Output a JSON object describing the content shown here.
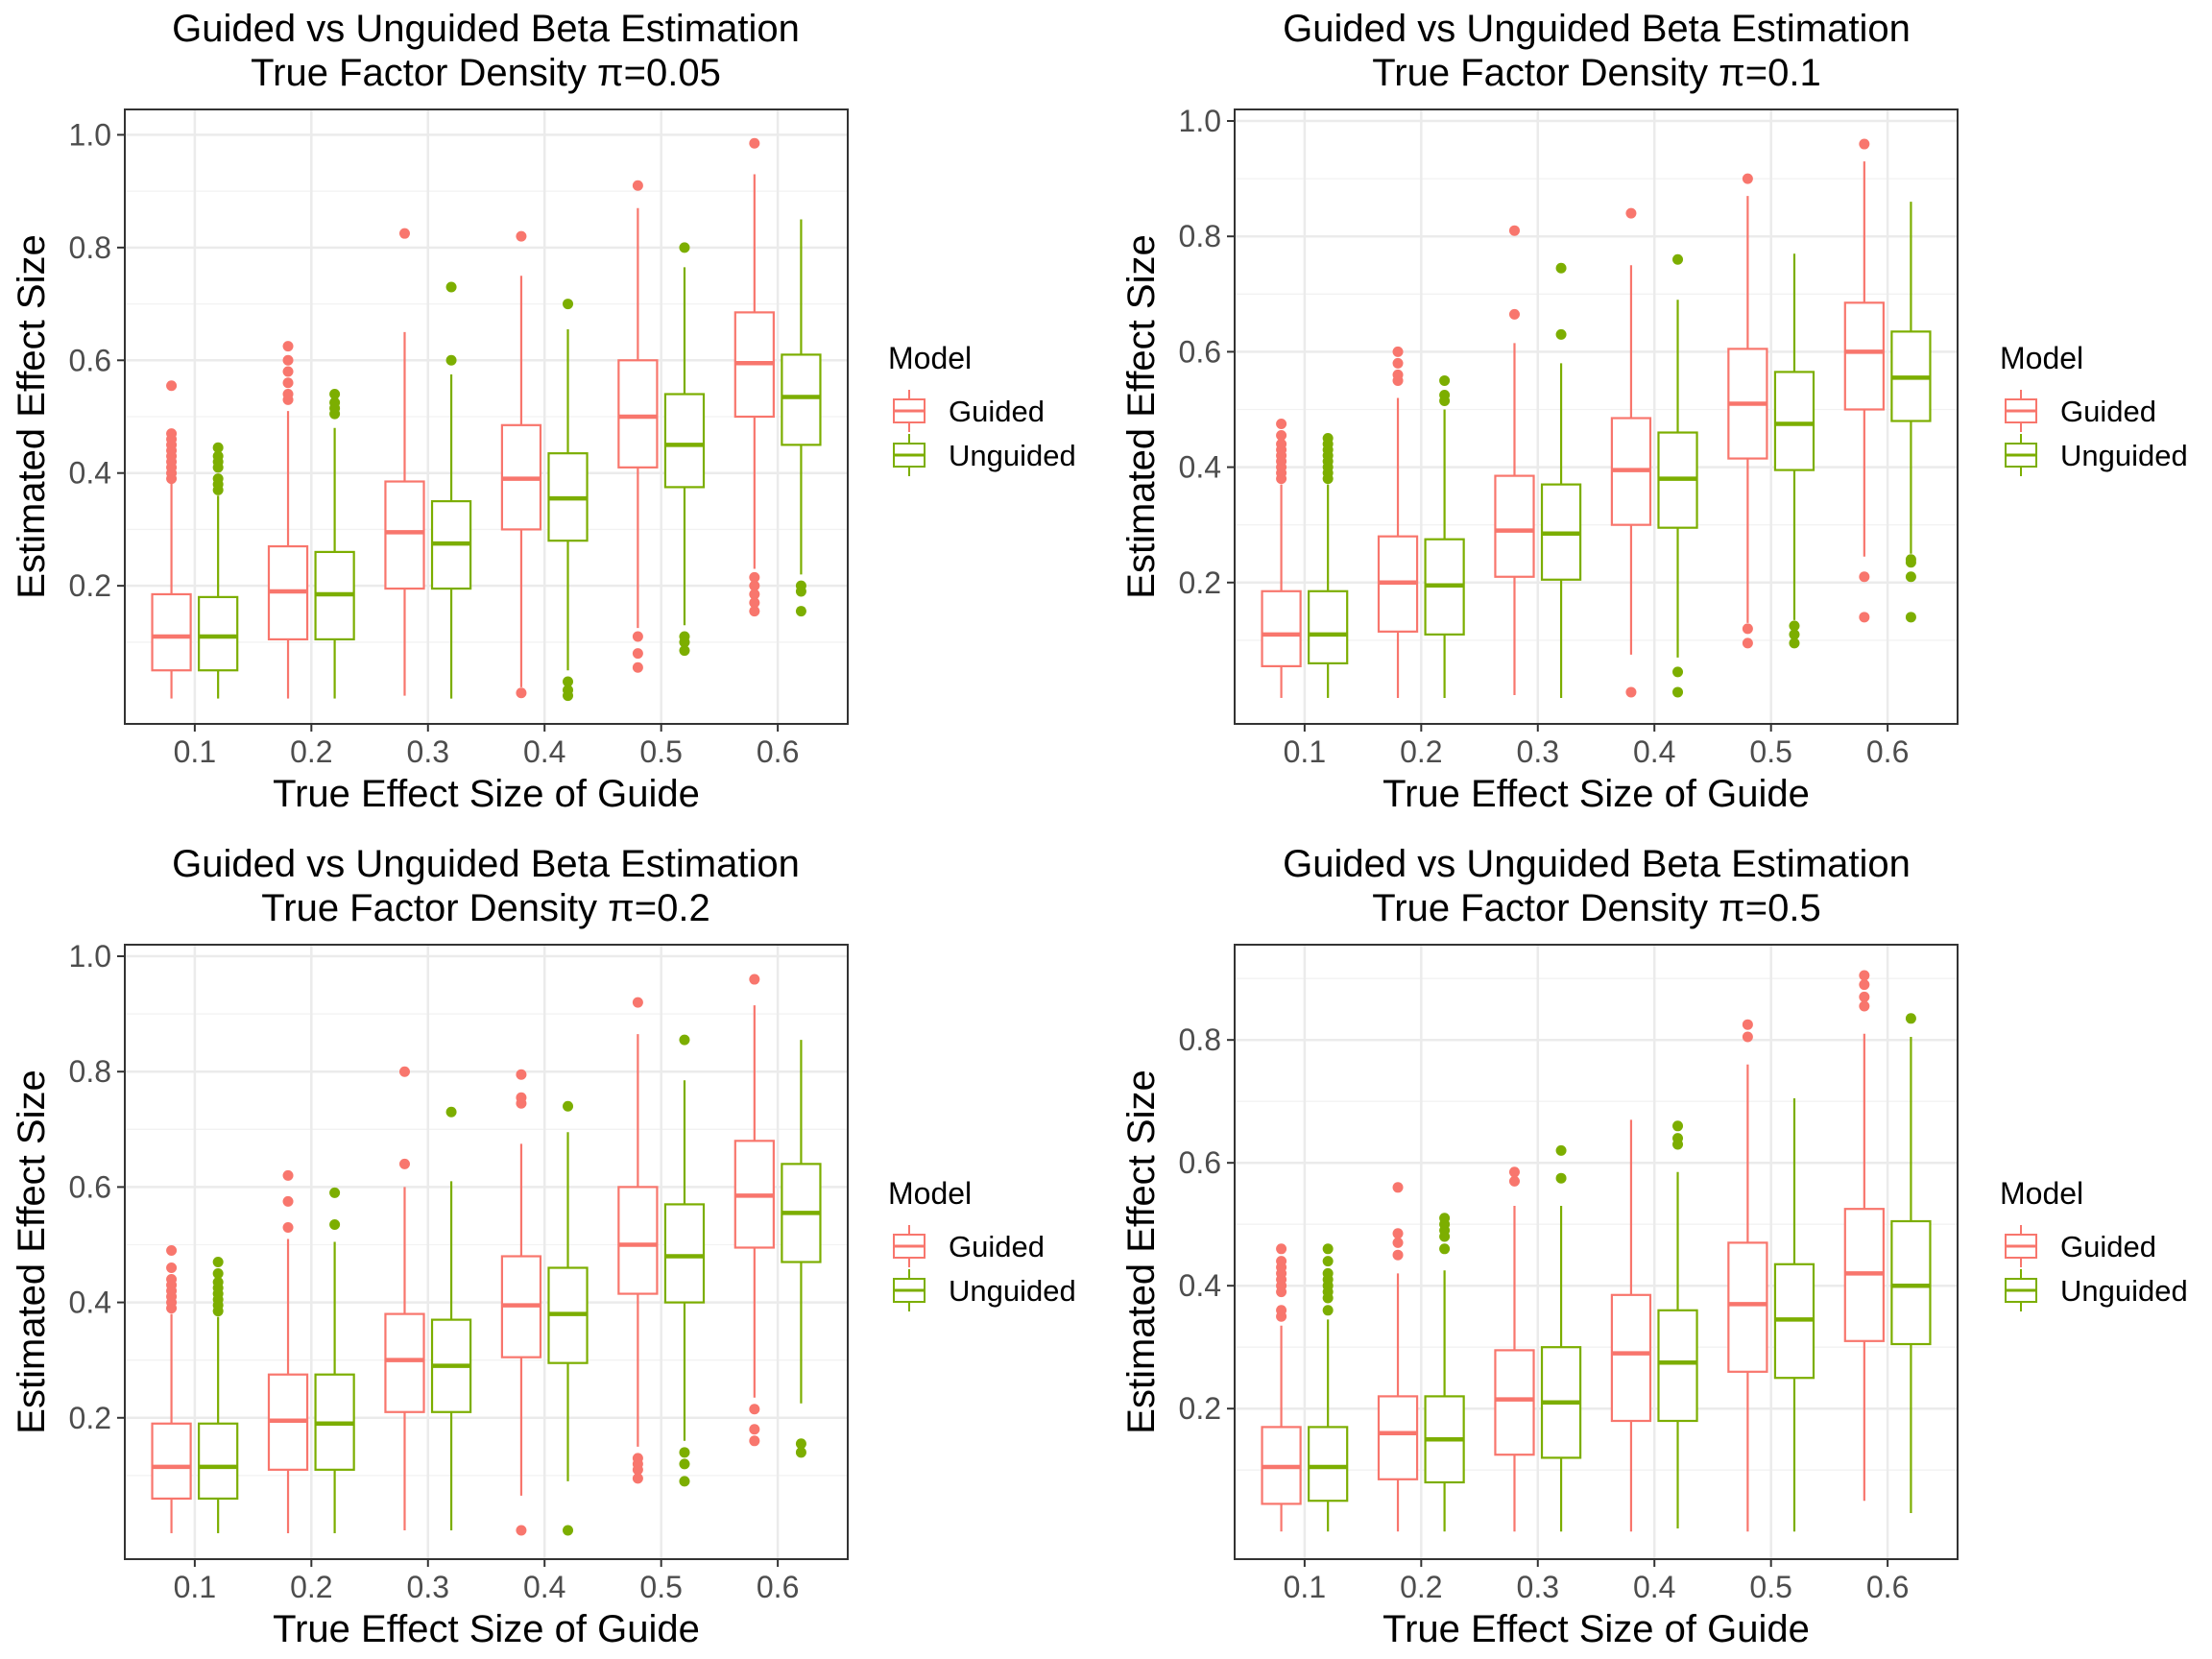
{
  "figure": {
    "legend_title": "Model",
    "series_names": [
      "Guided",
      "Unguided"
    ],
    "colors": {
      "Guided": "#F8766D",
      "Unguided": "#7CAE00"
    }
  },
  "chart_data": [
    {
      "type": "box",
      "title": "Guided vs Unguided Beta Estimation",
      "subtitle": "True Factor Density π=0.05",
      "xlabel": "True Effect Size of Guide",
      "ylabel": "Estimated Effect Size",
      "categories": [
        "0.1",
        "0.2",
        "0.3",
        "0.4",
        "0.5",
        "0.6"
      ],
      "xlim": [
        0.4,
        6.6
      ],
      "ylim": [
        -0.045,
        1.045
      ],
      "yticks": [
        0.2,
        0.4,
        0.6,
        0.8,
        1.0
      ],
      "ytick_labels": [
        "0.2",
        "0.4",
        "0.6",
        "0.8",
        "1.0"
      ],
      "grid": true,
      "legend_position": "right",
      "series": [
        {
          "name": "Guided",
          "boxes": [
            {
              "whisker_low": 0.0,
              "q1": 0.05,
              "median": 0.11,
              "q3": 0.185,
              "whisker_high": 0.385,
              "outliers": [
                0.39,
                0.4,
                0.41,
                0.42,
                0.43,
                0.44,
                0.45,
                0.46,
                0.47,
                0.555
              ]
            },
            {
              "whisker_low": 0.0,
              "q1": 0.105,
              "median": 0.19,
              "q3": 0.27,
              "whisker_high": 0.51,
              "outliers": [
                0.53,
                0.54,
                0.56,
                0.58,
                0.6,
                0.625
              ]
            },
            {
              "whisker_low": 0.005,
              "q1": 0.195,
              "median": 0.295,
              "q3": 0.385,
              "whisker_high": 0.65,
              "outliers": [
                0.825
              ]
            },
            {
              "whisker_low": 0.02,
              "q1": 0.3,
              "median": 0.39,
              "q3": 0.485,
              "whisker_high": 0.75,
              "outliers": [
                0.01,
                0.82
              ]
            },
            {
              "whisker_low": 0.125,
              "q1": 0.41,
              "median": 0.5,
              "q3": 0.6,
              "whisker_high": 0.87,
              "outliers": [
                0.055,
                0.08,
                0.11,
                0.91
              ]
            },
            {
              "whisker_low": 0.23,
              "q1": 0.5,
              "median": 0.595,
              "q3": 0.685,
              "whisker_high": 0.93,
              "outliers": [
                0.155,
                0.17,
                0.185,
                0.2,
                0.215,
                0.985
              ]
            }
          ]
        },
        {
          "name": "Unguided",
          "boxes": [
            {
              "whisker_low": 0.0,
              "q1": 0.05,
              "median": 0.11,
              "q3": 0.18,
              "whisker_high": 0.36,
              "outliers": [
                0.37,
                0.38,
                0.39,
                0.41,
                0.42,
                0.43,
                0.445
              ]
            },
            {
              "whisker_low": 0.0,
              "q1": 0.105,
              "median": 0.185,
              "q3": 0.26,
              "whisker_high": 0.48,
              "outliers": [
                0.505,
                0.515,
                0.525,
                0.54
              ]
            },
            {
              "whisker_low": 0.0,
              "q1": 0.195,
              "median": 0.275,
              "q3": 0.35,
              "whisker_high": 0.575,
              "outliers": [
                0.6,
                0.73
              ]
            },
            {
              "whisker_low": 0.05,
              "q1": 0.28,
              "median": 0.355,
              "q3": 0.435,
              "whisker_high": 0.655,
              "outliers": [
                0.005,
                0.015,
                0.03,
                0.7
              ]
            },
            {
              "whisker_low": 0.13,
              "q1": 0.375,
              "median": 0.45,
              "q3": 0.54,
              "whisker_high": 0.765,
              "outliers": [
                0.085,
                0.1,
                0.11,
                0.8
              ]
            },
            {
              "whisker_low": 0.22,
              "q1": 0.45,
              "median": 0.535,
              "q3": 0.61,
              "whisker_high": 0.85,
              "outliers": [
                0.155,
                0.19,
                0.2
              ]
            }
          ]
        }
      ]
    },
    {
      "type": "box",
      "title": "Guided vs Unguided Beta Estimation",
      "subtitle": "True Factor Density π=0.1",
      "xlabel": "True Effect Size of Guide",
      "ylabel": "Estimated Effect Size",
      "categories": [
        "0.1",
        "0.2",
        "0.3",
        "0.4",
        "0.5",
        "0.6"
      ],
      "xlim": [
        0.4,
        6.6
      ],
      "ylim": [
        -0.045,
        1.02
      ],
      "yticks": [
        0.2,
        0.4,
        0.6,
        0.8,
        1.0
      ],
      "ytick_labels": [
        "0.2",
        "0.4",
        "0.6",
        "0.8",
        "1.0"
      ],
      "grid": true,
      "legend_position": "right",
      "series": [
        {
          "name": "Guided",
          "boxes": [
            {
              "whisker_low": 0.0,
              "q1": 0.055,
              "median": 0.11,
              "q3": 0.185,
              "whisker_high": 0.37,
              "outliers": [
                0.38,
                0.39,
                0.4,
                0.41,
                0.42,
                0.43,
                0.44,
                0.455,
                0.475
              ]
            },
            {
              "whisker_low": 0.0,
              "q1": 0.115,
              "median": 0.2,
              "q3": 0.28,
              "whisker_high": 0.52,
              "outliers": [
                0.55,
                0.56,
                0.58,
                0.6
              ]
            },
            {
              "whisker_low": 0.005,
              "q1": 0.21,
              "median": 0.29,
              "q3": 0.385,
              "whisker_high": 0.615,
              "outliers": [
                0.665,
                0.81
              ]
            },
            {
              "whisker_low": 0.075,
              "q1": 0.3,
              "median": 0.395,
              "q3": 0.485,
              "whisker_high": 0.75,
              "outliers": [
                0.01,
                0.84
              ]
            },
            {
              "whisker_low": 0.13,
              "q1": 0.415,
              "median": 0.51,
              "q3": 0.605,
              "whisker_high": 0.87,
              "outliers": [
                0.095,
                0.12,
                0.9
              ]
            },
            {
              "whisker_low": 0.245,
              "q1": 0.5,
              "median": 0.6,
              "q3": 0.685,
              "whisker_high": 0.93,
              "outliers": [
                0.14,
                0.21,
                0.96
              ]
            }
          ]
        },
        {
          "name": "Unguided",
          "boxes": [
            {
              "whisker_low": 0.0,
              "q1": 0.06,
              "median": 0.11,
              "q3": 0.185,
              "whisker_high": 0.37,
              "outliers": [
                0.38,
                0.39,
                0.4,
                0.41,
                0.42,
                0.43,
                0.44,
                0.45
              ]
            },
            {
              "whisker_low": 0.0,
              "q1": 0.11,
              "median": 0.195,
              "q3": 0.275,
              "whisker_high": 0.5,
              "outliers": [
                0.515,
                0.525,
                0.55
              ]
            },
            {
              "whisker_low": 0.0,
              "q1": 0.205,
              "median": 0.285,
              "q3": 0.37,
              "whisker_high": 0.58,
              "outliers": [
                0.63,
                0.745
              ]
            },
            {
              "whisker_low": 0.07,
              "q1": 0.295,
              "median": 0.38,
              "q3": 0.46,
              "whisker_high": 0.69,
              "outliers": [
                0.01,
                0.045,
                0.76
              ]
            },
            {
              "whisker_low": 0.135,
              "q1": 0.395,
              "median": 0.475,
              "q3": 0.565,
              "whisker_high": 0.77,
              "outliers": [
                0.095,
                0.11,
                0.125
              ]
            },
            {
              "whisker_low": 0.25,
              "q1": 0.48,
              "median": 0.555,
              "q3": 0.635,
              "whisker_high": 0.86,
              "outliers": [
                0.14,
                0.21,
                0.235,
                0.24
              ]
            }
          ]
        }
      ]
    },
    {
      "type": "box",
      "title": "Guided vs Unguided Beta Estimation",
      "subtitle": "True Factor Density π=0.2",
      "xlabel": "True Effect Size of Guide",
      "ylabel": "Estimated Effect Size",
      "categories": [
        "0.1",
        "0.2",
        "0.3",
        "0.4",
        "0.5",
        "0.6"
      ],
      "xlim": [
        0.4,
        6.6
      ],
      "ylim": [
        -0.045,
        1.02
      ],
      "yticks": [
        0.2,
        0.4,
        0.6,
        0.8,
        1.0
      ],
      "ytick_labels": [
        "0.2",
        "0.4",
        "0.6",
        "0.8",
        "1.0"
      ],
      "grid": true,
      "legend_position": "right",
      "series": [
        {
          "name": "Guided",
          "boxes": [
            {
              "whisker_low": 0.0,
              "q1": 0.06,
              "median": 0.115,
              "q3": 0.19,
              "whisker_high": 0.38,
              "outliers": [
                0.39,
                0.4,
                0.41,
                0.42,
                0.43,
                0.44,
                0.46,
                0.49
              ]
            },
            {
              "whisker_low": 0.0,
              "q1": 0.11,
              "median": 0.195,
              "q3": 0.275,
              "whisker_high": 0.51,
              "outliers": [
                0.53,
                0.575,
                0.62
              ]
            },
            {
              "whisker_low": 0.005,
              "q1": 0.21,
              "median": 0.3,
              "q3": 0.38,
              "whisker_high": 0.6,
              "outliers": [
                0.64,
                0.8
              ]
            },
            {
              "whisker_low": 0.065,
              "q1": 0.305,
              "median": 0.395,
              "q3": 0.48,
              "whisker_high": 0.675,
              "outliers": [
                0.005,
                0.745,
                0.755,
                0.795
              ]
            },
            {
              "whisker_low": 0.15,
              "q1": 0.415,
              "median": 0.5,
              "q3": 0.6,
              "whisker_high": 0.865,
              "outliers": [
                0.095,
                0.11,
                0.12,
                0.13,
                0.92
              ]
            },
            {
              "whisker_low": 0.235,
              "q1": 0.495,
              "median": 0.585,
              "q3": 0.68,
              "whisker_high": 0.915,
              "outliers": [
                0.16,
                0.18,
                0.215,
                0.96
              ]
            }
          ]
        },
        {
          "name": "Unguided",
          "boxes": [
            {
              "whisker_low": 0.0,
              "q1": 0.06,
              "median": 0.115,
              "q3": 0.19,
              "whisker_high": 0.375,
              "outliers": [
                0.385,
                0.395,
                0.405,
                0.415,
                0.425,
                0.435,
                0.45,
                0.47
              ]
            },
            {
              "whisker_low": 0.0,
              "q1": 0.11,
              "median": 0.19,
              "q3": 0.275,
              "whisker_high": 0.505,
              "outliers": [
                0.535,
                0.59
              ]
            },
            {
              "whisker_low": 0.005,
              "q1": 0.21,
              "median": 0.29,
              "q3": 0.37,
              "whisker_high": 0.61,
              "outliers": [
                0.73
              ]
            },
            {
              "whisker_low": 0.09,
              "q1": 0.295,
              "median": 0.38,
              "q3": 0.46,
              "whisker_high": 0.695,
              "outliers": [
                0.005,
                0.74
              ]
            },
            {
              "whisker_low": 0.16,
              "q1": 0.4,
              "median": 0.48,
              "q3": 0.57,
              "whisker_high": 0.785,
              "outliers": [
                0.09,
                0.12,
                0.14,
                0.855
              ]
            },
            {
              "whisker_low": 0.225,
              "q1": 0.47,
              "median": 0.555,
              "q3": 0.64,
              "whisker_high": 0.855,
              "outliers": [
                0.14,
                0.155
              ]
            }
          ]
        }
      ]
    },
    {
      "type": "box",
      "title": "Guided vs Unguided Beta Estimation",
      "subtitle": "True Factor Density π=0.5",
      "xlabel": "True Effect Size of Guide",
      "ylabel": "Estimated Effect Size",
      "categories": [
        "0.1",
        "0.2",
        "0.3",
        "0.4",
        "0.5",
        "0.6"
      ],
      "xlim": [
        0.4,
        6.6
      ],
      "ylim": [
        -0.045,
        0.955
      ],
      "yticks": [
        0.2,
        0.4,
        0.6,
        0.8
      ],
      "ytick_labels": [
        "0.2",
        "0.4",
        "0.6",
        "0.8"
      ],
      "grid": true,
      "legend_position": "right",
      "series": [
        {
          "name": "Guided",
          "boxes": [
            {
              "whisker_low": 0.0,
              "q1": 0.045,
              "median": 0.105,
              "q3": 0.17,
              "whisker_high": 0.335,
              "outliers": [
                0.35,
                0.36,
                0.39,
                0.4,
                0.41,
                0.42,
                0.43,
                0.44,
                0.46
              ]
            },
            {
              "whisker_low": 0.0,
              "q1": 0.085,
              "median": 0.16,
              "q3": 0.22,
              "whisker_high": 0.42,
              "outliers": [
                0.45,
                0.47,
                0.485,
                0.56
              ]
            },
            {
              "whisker_low": 0.0,
              "q1": 0.125,
              "median": 0.215,
              "q3": 0.295,
              "whisker_high": 0.53,
              "outliers": [
                0.57,
                0.585
              ]
            },
            {
              "whisker_low": 0.0,
              "q1": 0.18,
              "median": 0.29,
              "q3": 0.385,
              "whisker_high": 0.67,
              "outliers": []
            },
            {
              "whisker_low": 0.0,
              "q1": 0.26,
              "median": 0.37,
              "q3": 0.47,
              "whisker_high": 0.76,
              "outliers": [
                0.805,
                0.825
              ]
            },
            {
              "whisker_low": 0.05,
              "q1": 0.31,
              "median": 0.42,
              "q3": 0.525,
              "whisker_high": 0.81,
              "outliers": [
                0.855,
                0.87,
                0.89,
                0.905
              ]
            }
          ]
        },
        {
          "name": "Unguided",
          "boxes": [
            {
              "whisker_low": 0.0,
              "q1": 0.05,
              "median": 0.105,
              "q3": 0.17,
              "whisker_high": 0.345,
              "outliers": [
                0.36,
                0.38,
                0.39,
                0.4,
                0.41,
                0.42,
                0.44,
                0.46
              ]
            },
            {
              "whisker_low": 0.0,
              "q1": 0.08,
              "median": 0.15,
              "q3": 0.22,
              "whisker_high": 0.425,
              "outliers": [
                0.46,
                0.48,
                0.49,
                0.5,
                0.51
              ]
            },
            {
              "whisker_low": 0.0,
              "q1": 0.12,
              "median": 0.21,
              "q3": 0.3,
              "whisker_high": 0.53,
              "outliers": [
                0.575,
                0.62
              ]
            },
            {
              "whisker_low": 0.005,
              "q1": 0.18,
              "median": 0.275,
              "q3": 0.36,
              "whisker_high": 0.585,
              "outliers": [
                0.63,
                0.64,
                0.66
              ]
            },
            {
              "whisker_low": 0.0,
              "q1": 0.25,
              "median": 0.345,
              "q3": 0.435,
              "whisker_high": 0.705,
              "outliers": []
            },
            {
              "whisker_low": 0.03,
              "q1": 0.305,
              "median": 0.4,
              "q3": 0.505,
              "whisker_high": 0.805,
              "outliers": [
                0.835
              ]
            }
          ]
        }
      ]
    }
  ]
}
